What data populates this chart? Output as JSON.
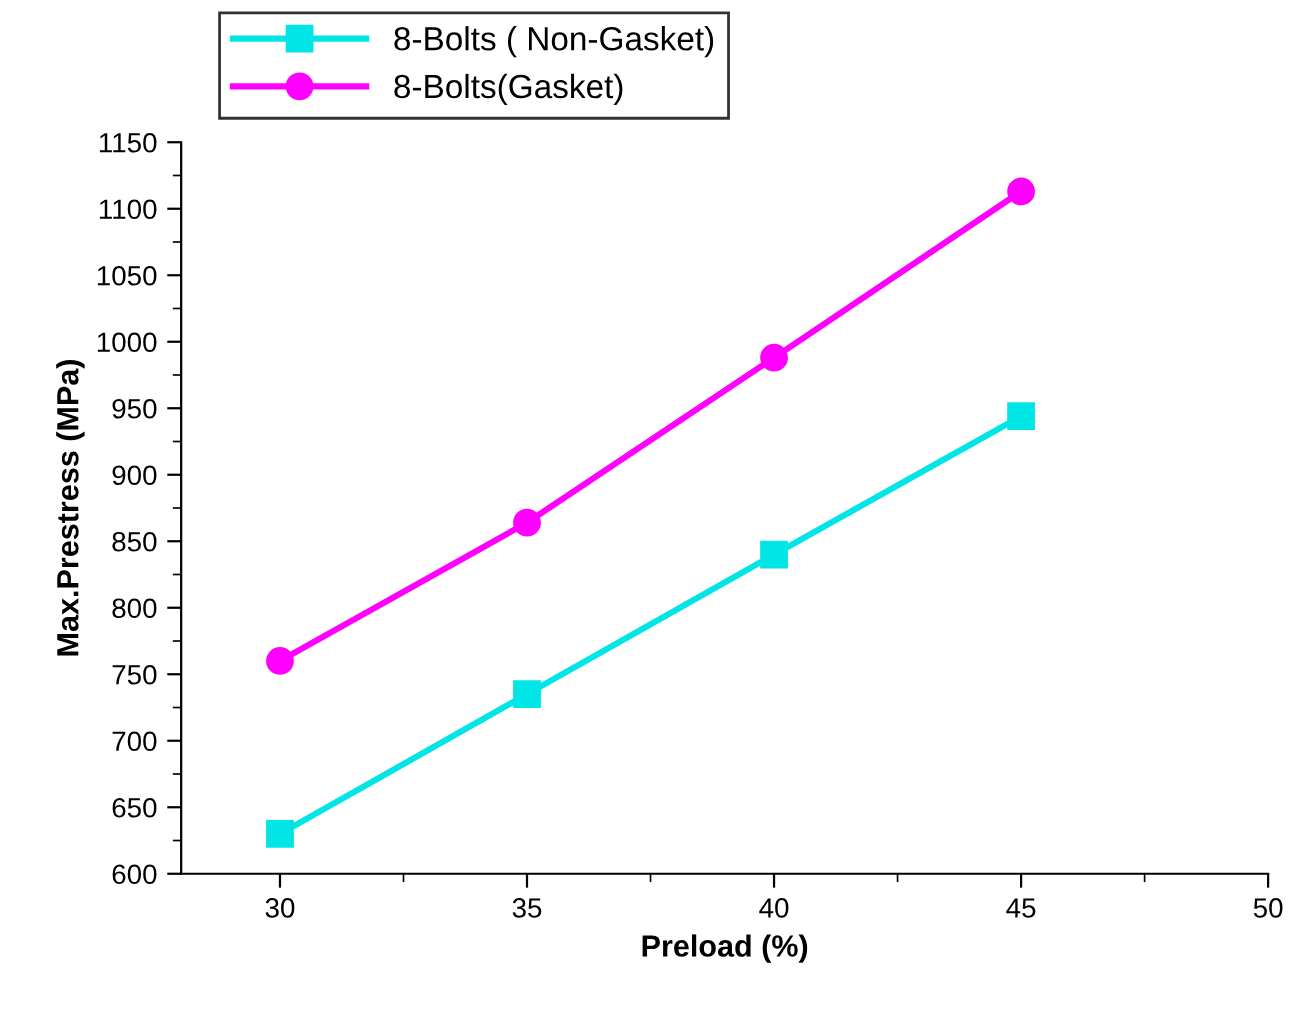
{
  "chart_data": {
    "type": "line",
    "xlabel": "Preload (%)",
    "ylabel": "Max.Prestress (MPa)",
    "x": [
      30,
      35,
      40,
      45
    ],
    "series": [
      {
        "name": "8-Bolts ( Non-Gasket)",
        "color": "#00e5e5",
        "marker": "square",
        "values": [
          630,
          735,
          840,
          944
        ]
      },
      {
        "name": "8-Bolts(Gasket)",
        "color": "#ff00ff",
        "marker": "circle",
        "values": [
          760,
          864,
          988,
          1113
        ]
      }
    ],
    "xlim": [
      28,
      50
    ],
    "xticks": [
      30,
      35,
      40,
      45,
      50
    ],
    "ylim": [
      600,
      1150
    ],
    "yticks": [
      600,
      650,
      700,
      750,
      800,
      850,
      900,
      950,
      1000,
      1050,
      1100,
      1150
    ],
    "grid": false,
    "legend": "top left",
    "line_style": "solid"
  }
}
